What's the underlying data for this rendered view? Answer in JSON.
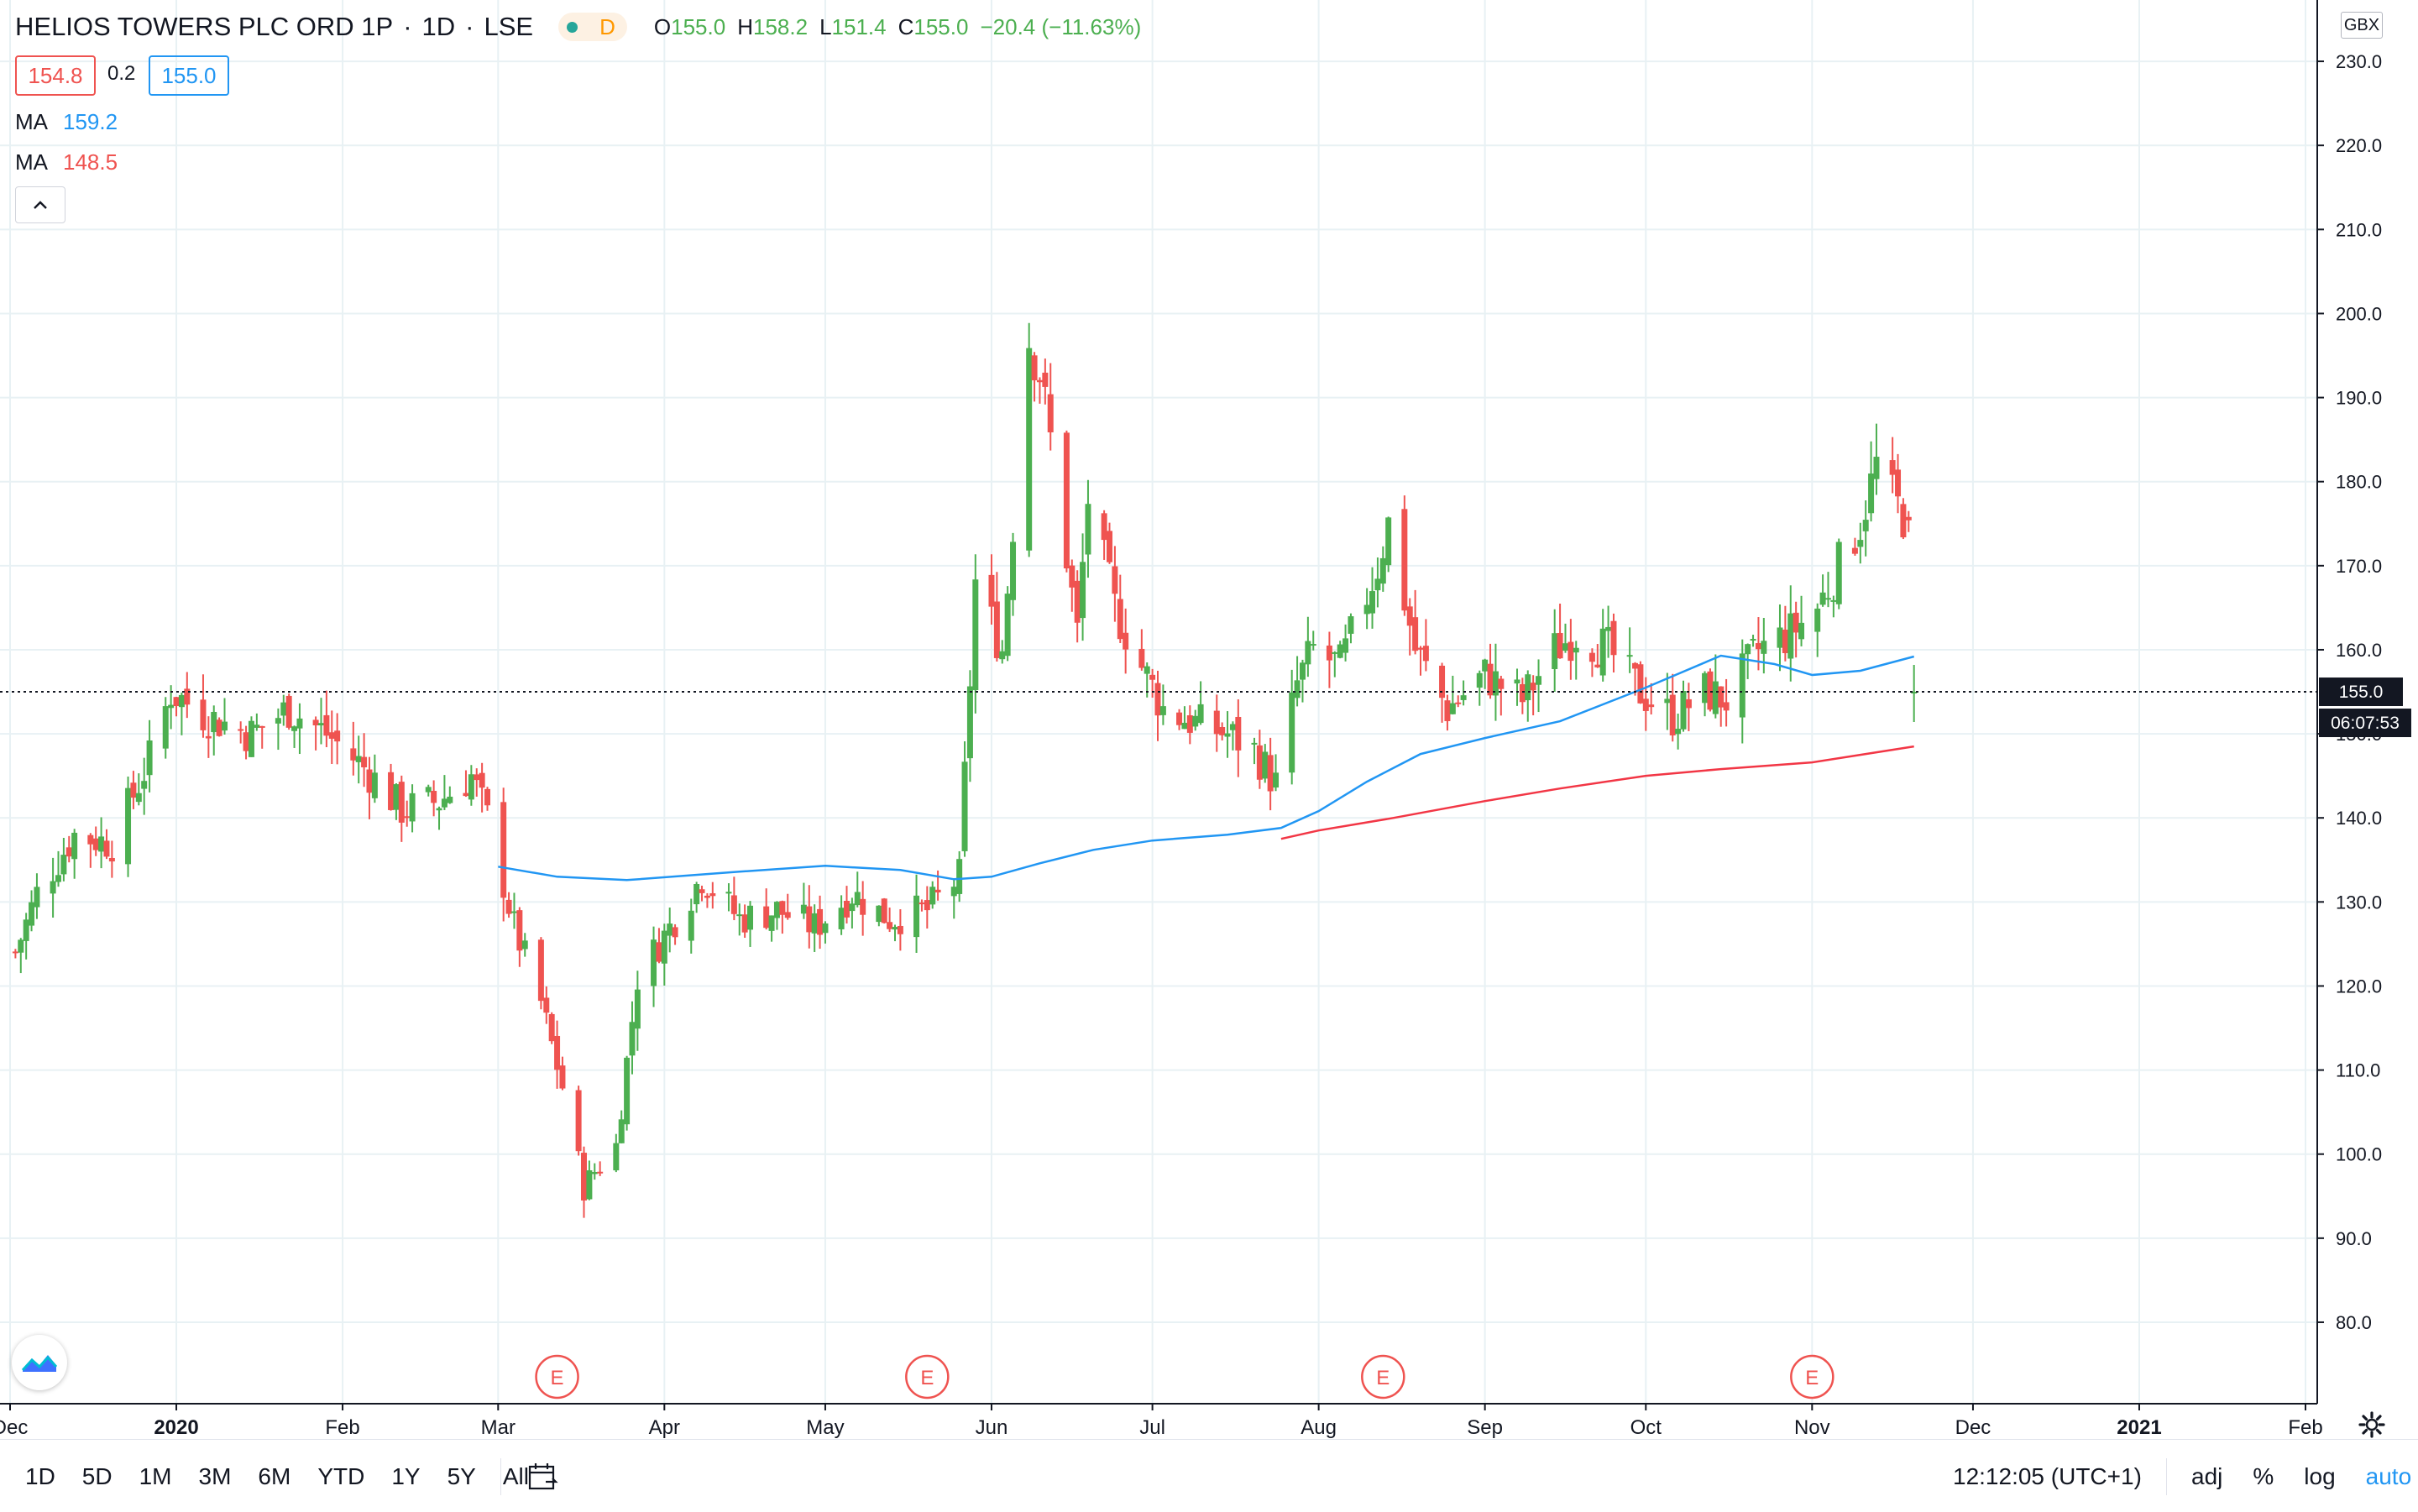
{
  "header": {
    "symbol": "HELIOS TOWERS PLC ORD 1P",
    "interval": "1D",
    "exchange": "LSE",
    "flag_letter": "D",
    "ohlc": {
      "o_label": "O",
      "o_value": "155.0",
      "h_label": "H",
      "h_value": "158.2",
      "l_label": "L",
      "l_value": "151.4",
      "c_label": "C",
      "c_value": "155.0",
      "change": "−20.4 (−11.63%)"
    },
    "bid": "154.8",
    "spread": "0.2",
    "ask": "155.0",
    "ma1_label": "MA",
    "ma1_value": "159.2",
    "ma2_label": "MA",
    "ma2_value": "148.5",
    "collapse_icon": "chevron-up-icon"
  },
  "currency": "GBX",
  "last_price_label": "155.0",
  "countdown_label": "06:07:53",
  "bottom_bar": {
    "ranges": [
      "1D",
      "5D",
      "1M",
      "3M",
      "6M",
      "YTD",
      "1Y",
      "5Y",
      "All"
    ],
    "clock": "12:12:05 (UTC+1)",
    "toggles": [
      "adj",
      "%",
      "log",
      "auto"
    ]
  },
  "colors": {
    "up": "#4caf50",
    "down": "#ef5350",
    "ma_fast": "#2196f3",
    "ma_slow": "#f23645",
    "grid": "#e8f1f4"
  },
  "chart_data": {
    "type": "candlestick",
    "title": "HELIOS TOWERS PLC ORD 1P · 1D · LSE",
    "y_axis": {
      "ticks": [
        "80.0",
        "90.0",
        "100.0",
        "110.0",
        "120.0",
        "130.0",
        "140.0",
        "150.0",
        "160.0",
        "170.0",
        "180.0",
        "190.0",
        "200.0",
        "210.0",
        "220.0",
        "230.0"
      ],
      "range": [
        77,
        235
      ],
      "unit": "GBX"
    },
    "x_axis": {
      "ticks": [
        {
          "label": "Dec",
          "date": "2019-12-01"
        },
        {
          "label": "2020",
          "date": "2020-01-01"
        },
        {
          "label": "Feb",
          "date": "2020-02-01"
        },
        {
          "label": "Mar",
          "date": "2020-03-01"
        },
        {
          "label": "Apr",
          "date": "2020-04-01"
        },
        {
          "label": "May",
          "date": "2020-05-01"
        },
        {
          "label": "Jun",
          "date": "2020-06-01"
        },
        {
          "label": "Jul",
          "date": "2020-07-01"
        },
        {
          "label": "Aug",
          "date": "2020-08-01"
        },
        {
          "label": "Sep",
          "date": "2020-09-01"
        },
        {
          "label": "Oct",
          "date": "2020-10-01"
        },
        {
          "label": "Nov",
          "date": "2020-11-01"
        },
        {
          "label": "Dec",
          "date": "2020-12-01"
        },
        {
          "label": "2021",
          "date": "2021-01-01"
        },
        {
          "label": "Feb",
          "date": "2021-02-01"
        }
      ],
      "range": [
        "2019-12-01",
        "2021-02-01"
      ]
    },
    "earnings_markers": [
      {
        "label": "E",
        "date": "2020-03-12"
      },
      {
        "label": "E",
        "date": "2020-05-20"
      },
      {
        "label": "E",
        "date": "2020-08-13"
      },
      {
        "label": "E",
        "date": "2020-11-01"
      }
    ],
    "last_price": 155.0,
    "close_keyframes": [
      {
        "date": "2019-12-02",
        "close": 124
      },
      {
        "date": "2019-12-06",
        "close": 131
      },
      {
        "date": "2019-12-13",
        "close": 138
      },
      {
        "date": "2019-12-20",
        "close": 137
      },
      {
        "date": "2019-12-27",
        "close": 147
      },
      {
        "date": "2019-12-31",
        "close": 155
      },
      {
        "date": "2020-01-07",
        "close": 152
      },
      {
        "date": "2020-01-15",
        "close": 150
      },
      {
        "date": "2020-01-22",
        "close": 153
      },
      {
        "date": "2020-01-29",
        "close": 150
      },
      {
        "date": "2020-02-05",
        "close": 146
      },
      {
        "date": "2020-02-12",
        "close": 141
      },
      {
        "date": "2020-02-19",
        "close": 142
      },
      {
        "date": "2020-02-25",
        "close": 145
      },
      {
        "date": "2020-02-28",
        "close": 140
      },
      {
        "date": "2020-03-04",
        "close": 127
      },
      {
        "date": "2020-03-09",
        "close": 118
      },
      {
        "date": "2020-03-13",
        "close": 108
      },
      {
        "date": "2020-03-17",
        "close": 96
      },
      {
        "date": "2020-03-19",
        "close": 98
      },
      {
        "date": "2020-03-23",
        "close": 101
      },
      {
        "date": "2020-03-27",
        "close": 121
      },
      {
        "date": "2020-04-01",
        "close": 126
      },
      {
        "date": "2020-04-08",
        "close": 133
      },
      {
        "date": "2020-04-15",
        "close": 128
      },
      {
        "date": "2020-04-22",
        "close": 129
      },
      {
        "date": "2020-04-29",
        "close": 127
      },
      {
        "date": "2020-05-06",
        "close": 131
      },
      {
        "date": "2020-05-13",
        "close": 128
      },
      {
        "date": "2020-05-20",
        "close": 129
      },
      {
        "date": "2020-05-26",
        "close": 133
      },
      {
        "date": "2020-05-27",
        "close": 145
      },
      {
        "date": "2020-05-29",
        "close": 168
      },
      {
        "date": "2020-06-03",
        "close": 160
      },
      {
        "date": "2020-06-05",
        "close": 175
      },
      {
        "date": "2020-06-08",
        "close": 197
      },
      {
        "date": "2020-06-10",
        "close": 193
      },
      {
        "date": "2020-06-12",
        "close": 185
      },
      {
        "date": "2020-06-17",
        "close": 162
      },
      {
        "date": "2020-06-19",
        "close": 178
      },
      {
        "date": "2020-06-24",
        "close": 165
      },
      {
        "date": "2020-06-29",
        "close": 158
      },
      {
        "date": "2020-07-03",
        "close": 153
      },
      {
        "date": "2020-07-10",
        "close": 151
      },
      {
        "date": "2020-07-15",
        "close": 150
      },
      {
        "date": "2020-07-20",
        "close": 148
      },
      {
        "date": "2020-07-24",
        "close": 144
      },
      {
        "date": "2020-07-28",
        "close": 156
      },
      {
        "date": "2020-07-31",
        "close": 160
      },
      {
        "date": "2020-08-05",
        "close": 158
      },
      {
        "date": "2020-08-12",
        "close": 170
      },
      {
        "date": "2020-08-14",
        "close": 175
      },
      {
        "date": "2020-08-19",
        "close": 160
      },
      {
        "date": "2020-08-25",
        "close": 153
      },
      {
        "date": "2020-09-01",
        "close": 157
      },
      {
        "date": "2020-09-08",
        "close": 154
      },
      {
        "date": "2020-09-14",
        "close": 160
      },
      {
        "date": "2020-09-18",
        "close": 162
      },
      {
        "date": "2020-09-24",
        "close": 160
      },
      {
        "date": "2020-09-30",
        "close": 155
      },
      {
        "date": "2020-10-06",
        "close": 152
      },
      {
        "date": "2020-10-12",
        "close": 155
      },
      {
        "date": "2020-10-16",
        "close": 154
      },
      {
        "date": "2020-10-22",
        "close": 160
      },
      {
        "date": "2020-10-28",
        "close": 162
      },
      {
        "date": "2020-11-02",
        "close": 165
      },
      {
        "date": "2020-11-06",
        "close": 170
      },
      {
        "date": "2020-11-10",
        "close": 175
      },
      {
        "date": "2020-11-13",
        "close": 182
      },
      {
        "date": "2020-11-16",
        "close": 178
      },
      {
        "date": "2020-11-18",
        "close": 176
      },
      {
        "date": "2020-11-19",
        "close": 175.4
      },
      {
        "date": "2020-11-20",
        "close": 155
      }
    ],
    "final_candles": [
      {
        "date": "2020-11-19",
        "open": 175.8,
        "high": 176.5,
        "low": 174.0,
        "close": 175.4
      },
      {
        "date": "2020-11-20",
        "open": 155.0,
        "high": 158.2,
        "low": 151.4,
        "close": 155.0
      }
    ],
    "series": [
      {
        "name": "MA",
        "value": 159.2,
        "points": [
          {
            "date": "2020-03-01",
            "value": 134.2
          },
          {
            "date": "2020-03-12",
            "value": 133.0
          },
          {
            "date": "2020-03-25",
            "value": 132.6
          },
          {
            "date": "2020-04-15",
            "value": 133.6
          },
          {
            "date": "2020-05-01",
            "value": 134.3
          },
          {
            "date": "2020-05-15",
            "value": 133.8
          },
          {
            "date": "2020-05-25",
            "value": 132.7
          },
          {
            "date": "2020-06-01",
            "value": 133.0
          },
          {
            "date": "2020-06-10",
            "value": 134.6
          },
          {
            "date": "2020-06-20",
            "value": 136.2
          },
          {
            "date": "2020-07-01",
            "value": 137.3
          },
          {
            "date": "2020-07-15",
            "value": 138.0
          },
          {
            "date": "2020-07-25",
            "value": 138.8
          },
          {
            "date": "2020-08-01",
            "value": 140.8
          },
          {
            "date": "2020-08-10",
            "value": 144.3
          },
          {
            "date": "2020-08-20",
            "value": 147.6
          },
          {
            "date": "2020-09-01",
            "value": 149.5
          },
          {
            "date": "2020-09-15",
            "value": 151.5
          },
          {
            "date": "2020-10-01",
            "value": 155.5
          },
          {
            "date": "2020-10-15",
            "value": 159.3
          },
          {
            "date": "2020-10-25",
            "value": 158.3
          },
          {
            "date": "2020-11-01",
            "value": 157.0
          },
          {
            "date": "2020-11-10",
            "value": 157.5
          },
          {
            "date": "2020-11-20",
            "value": 159.2
          }
        ]
      },
      {
        "name": "MA",
        "value": 148.5,
        "points": [
          {
            "date": "2020-07-25",
            "value": 137.5
          },
          {
            "date": "2020-08-01",
            "value": 138.5
          },
          {
            "date": "2020-08-15",
            "value": 140.0
          },
          {
            "date": "2020-09-01",
            "value": 142.0
          },
          {
            "date": "2020-09-15",
            "value": 143.5
          },
          {
            "date": "2020-10-01",
            "value": 145.0
          },
          {
            "date": "2020-10-15",
            "value": 145.8
          },
          {
            "date": "2020-11-01",
            "value": 146.6
          },
          {
            "date": "2020-11-10",
            "value": 147.5
          },
          {
            "date": "2020-11-20",
            "value": 148.5
          }
        ]
      }
    ],
    "grid": true,
    "legend_position": "top-left"
  }
}
